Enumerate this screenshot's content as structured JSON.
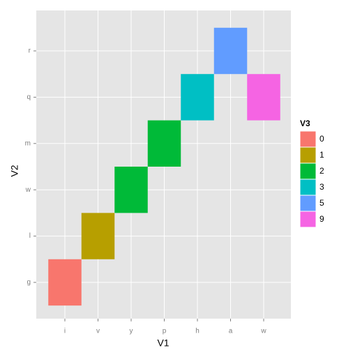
{
  "chart_data": {
    "type": "tile",
    "x_label": "V1",
    "y_label": "V2",
    "legend_title": "V3",
    "x_categories": [
      "i",
      "v",
      "y",
      "p",
      "h",
      "a",
      "w"
    ],
    "y_categories": [
      "g",
      "l",
      "w",
      "m",
      "q",
      "r"
    ],
    "tiles": [
      {
        "x": "i",
        "y": "g",
        "value": 0
      },
      {
        "x": "v",
        "y": "l",
        "value": 1
      },
      {
        "x": "y",
        "y": "w",
        "value": 2
      },
      {
        "x": "p",
        "y": "m",
        "value": 2
      },
      {
        "x": "h",
        "y": "q",
        "value": 3
      },
      {
        "x": "a",
        "y": "r",
        "value": 5
      },
      {
        "x": "w",
        "y": "q",
        "value": 9
      }
    ],
    "legend_levels": [
      0,
      1,
      2,
      3,
      5,
      9
    ],
    "legend_colors": [
      "#F8766D",
      "#B79F00",
      "#00BA38",
      "#00BFC4",
      "#619CFF",
      "#F564E3"
    ],
    "grid": true
  }
}
